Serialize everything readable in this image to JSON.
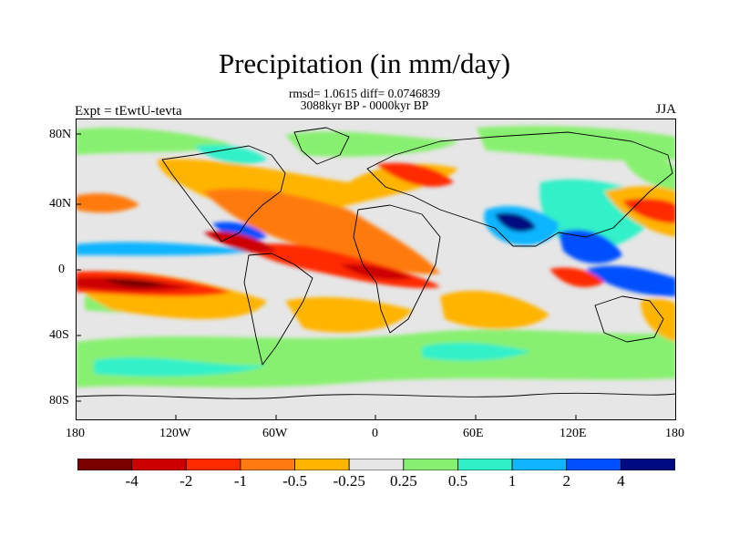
{
  "header": {
    "title": "Precipitation (in mm/day)",
    "stats_line": "rmsd= 1.0615 diff= 0.0746839",
    "period_line": "3088kyr BP - 0000kyr BP",
    "experiment": "Expt = tEwtU-tevta",
    "season": "JJA"
  },
  "map": {
    "lat_ticks": [
      "80N",
      "40N",
      "0",
      "40S",
      "80S"
    ],
    "lon_ticks": [
      "180",
      "120W",
      "60W",
      "0",
      "60E",
      "120E",
      "180"
    ]
  },
  "colorbar": {
    "colors": [
      "#7a0000",
      "#cc0000",
      "#ff2a00",
      "#ff7a10",
      "#ffb400",
      "#e6e6e6",
      "#88f070",
      "#30f0c8",
      "#10b4ff",
      "#0050ff",
      "#000a80"
    ],
    "labels": [
      "-4",
      "-2",
      "-1",
      "-0.5",
      "-0.25",
      "0.25",
      "0.5",
      "1",
      "2",
      "4"
    ]
  }
}
